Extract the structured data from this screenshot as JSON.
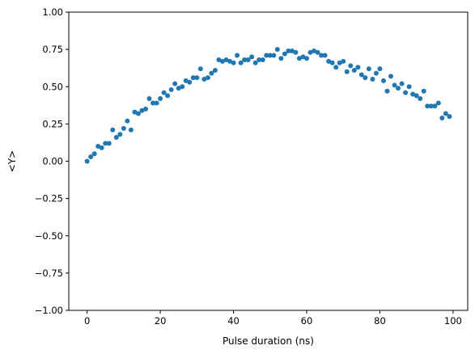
{
  "chart_data": {
    "type": "scatter",
    "title": "",
    "xlabel": "Pulse duration (ns)",
    "ylabel": "<Y>",
    "xlim": [
      -5,
      104
    ],
    "ylim": [
      -1.0,
      1.0
    ],
    "xticks": [
      0,
      20,
      40,
      60,
      80,
      100
    ],
    "xtick_labels": [
      "0",
      "20",
      "40",
      "60",
      "80",
      "100"
    ],
    "yticks": [
      -1.0,
      -0.75,
      -0.5,
      -0.25,
      0.0,
      0.25,
      0.5,
      0.75,
      1.0
    ],
    "ytick_labels": [
      "−1.00",
      "−0.75",
      "−0.50",
      "−0.25",
      "0.00",
      "0.25",
      "0.50",
      "0.75",
      "1.00"
    ],
    "grid": false,
    "marker_color": "#1f77b4",
    "series": [
      {
        "x": [
          0,
          1,
          2,
          3,
          4,
          5,
          6,
          7,
          8,
          9,
          10,
          11,
          12,
          13,
          14,
          15,
          16,
          17,
          18,
          19,
          20,
          21,
          22,
          23,
          24,
          25,
          26,
          27,
          28,
          29,
          30,
          31,
          32,
          33,
          34,
          35,
          36,
          37,
          38,
          39,
          40,
          41,
          42,
          43,
          44,
          45,
          46,
          47,
          48,
          49,
          50,
          51,
          52,
          53,
          54,
          55,
          56,
          57,
          58,
          59,
          60,
          61,
          62,
          63,
          64,
          65,
          66,
          67,
          68,
          69,
          70,
          71,
          72,
          73,
          74,
          75,
          76,
          77,
          78,
          79,
          80,
          81,
          82,
          83,
          84,
          85,
          86,
          87,
          88,
          89,
          90,
          91,
          92,
          93,
          94,
          95,
          96,
          97,
          98,
          99
        ],
        "y": [
          0.0,
          0.03,
          0.05,
          0.1,
          0.09,
          0.12,
          0.12,
          0.21,
          0.16,
          0.18,
          0.22,
          0.27,
          0.21,
          0.33,
          0.32,
          0.34,
          0.35,
          0.42,
          0.39,
          0.39,
          0.42,
          0.46,
          0.44,
          0.48,
          0.52,
          0.49,
          0.5,
          0.54,
          0.53,
          0.56,
          0.56,
          0.62,
          0.55,
          0.56,
          0.59,
          0.61,
          0.68,
          0.67,
          0.68,
          0.67,
          0.66,
          0.71,
          0.66,
          0.68,
          0.68,
          0.7,
          0.66,
          0.68,
          0.68,
          0.71,
          0.71,
          0.71,
          0.75,
          0.69,
          0.72,
          0.74,
          0.74,
          0.73,
          0.69,
          0.7,
          0.69,
          0.73,
          0.74,
          0.73,
          0.71,
          0.71,
          0.67,
          0.66,
          0.63,
          0.66,
          0.67,
          0.6,
          0.64,
          0.61,
          0.63,
          0.58,
          0.56,
          0.62,
          0.55,
          0.59,
          0.62,
          0.54,
          0.47,
          0.57,
          0.51,
          0.49,
          0.52,
          0.46,
          0.5,
          0.45,
          0.44,
          0.42,
          0.47,
          0.37,
          0.37,
          0.37,
          0.39,
          0.29,
          0.32,
          0.3
        ]
      }
    ]
  }
}
